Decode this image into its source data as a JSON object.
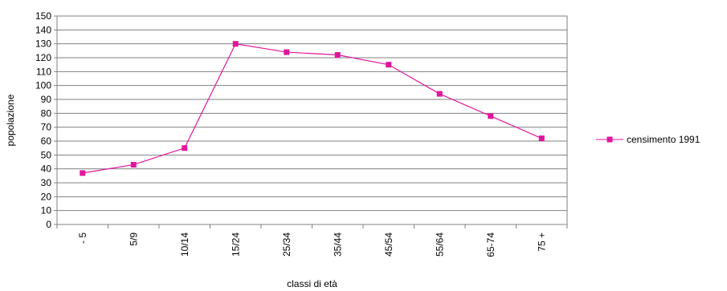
{
  "chart_data": {
    "type": "line",
    "xlabel": "classi di età",
    "ylabel": "popolazione",
    "categories": [
      "- 5",
      "5/9",
      "10/14",
      "15/24",
      "25/34",
      "35/44",
      "45/54",
      "55/64",
      "65-74",
      "75 +"
    ],
    "series": [
      {
        "name": "censimento 1991",
        "color": "#e0169b",
        "marker": "square",
        "values": [
          37,
          43,
          55,
          130,
          124,
          122,
          115,
          94,
          78,
          62
        ]
      }
    ],
    "ylim": [
      0,
      150
    ],
    "yticks": [
      0,
      10,
      20,
      30,
      40,
      50,
      60,
      70,
      80,
      90,
      100,
      110,
      120,
      130,
      140,
      150
    ],
    "grid": "horizontal",
    "legend_position": "right"
  }
}
